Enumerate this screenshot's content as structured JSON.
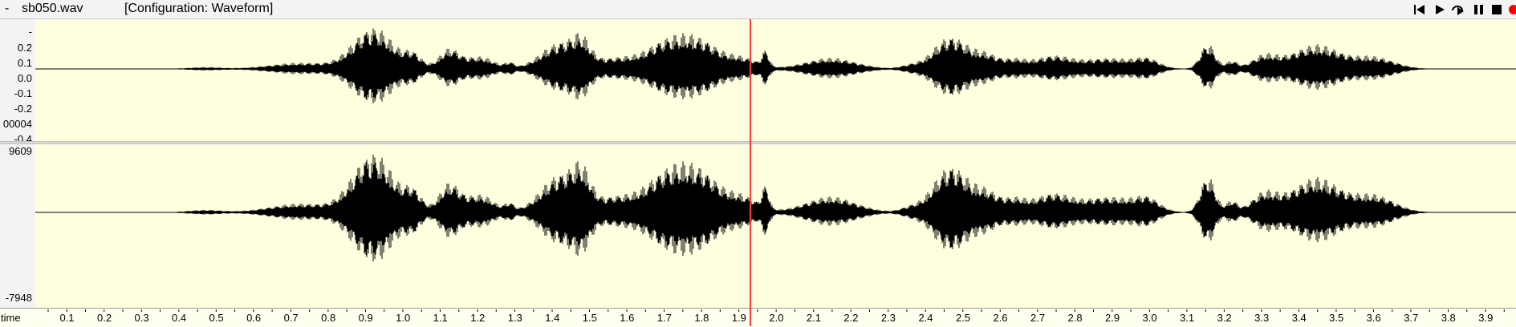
{
  "titlebar": {
    "dash": "-",
    "filename": "sb050.wav",
    "configuration": "[Configuration: Waveform]"
  },
  "toolbar": {
    "icons": [
      "skip-to-start-icon",
      "play-icon",
      "play-loop-icon",
      "pause-icon",
      "stop-icon",
      "record-icon"
    ],
    "record_color": "#ff0000"
  },
  "top_track": {
    "axis_labels": [
      "-",
      "0.2",
      "0.1",
      "0.0",
      "-0.1",
      "-0.2",
      "00004",
      "-0.4"
    ]
  },
  "bottom_track": {
    "max_label": "9609",
    "min_label": "-7948"
  },
  "ruler": {
    "label": "time",
    "ticks": [
      "0.1",
      "0.2",
      "0.3",
      "0.4",
      "0.5",
      "0.6",
      "0.7",
      "0.8",
      "0.9",
      "1.0",
      "1.1",
      "1.2",
      "1.3",
      "1.4",
      "1.5",
      "1.6",
      "1.7",
      "1.8",
      "1.9",
      "2.0",
      "2.1",
      "2.2",
      "2.3",
      "2.4",
      "2.5",
      "2.6",
      "2.7",
      "2.8",
      "2.9",
      "3.0",
      "3.1",
      "3.2",
      "3.3",
      "3.4",
      "3.5",
      "3.6",
      "3.7",
      "3.8",
      "3.9"
    ]
  },
  "cursor": {
    "time_s": 1.93,
    "color": "#ff3b3b"
  },
  "colors": {
    "waveform_bg": "#ffffe0",
    "waveform": "#000000"
  }
}
